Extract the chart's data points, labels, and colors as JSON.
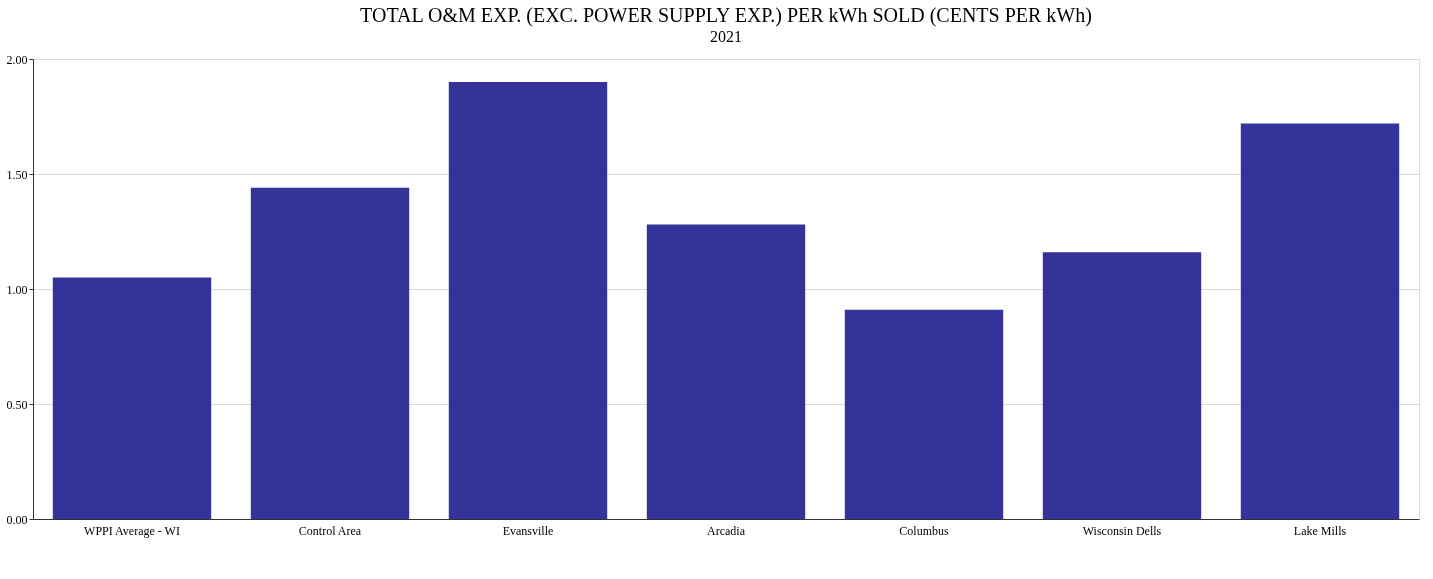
{
  "chart_data": {
    "type": "bar",
    "title": "TOTAL O&M EXP. (EXC. POWER SUPPLY EXP.) PER kWh SOLD (CENTS PER kWh)",
    "subtitle": "2021",
    "categories": [
      "WPPI Average - WI",
      "Control Area",
      "Evansville",
      "Arcadia",
      "Columbus",
      "Wisconsin Dells",
      "Lake Mills"
    ],
    "values": [
      1.05,
      1.44,
      1.9,
      1.28,
      0.91,
      1.16,
      1.72
    ],
    "color": "#333399",
    "ylim": [
      0,
      2
    ],
    "yticks": [
      {
        "value": 0,
        "label": "0.00"
      },
      {
        "value": 0.5,
        "label": "0.50"
      },
      {
        "value": 1,
        "label": "1.00"
      },
      {
        "value": 1.5,
        "label": "1.50"
      },
      {
        "value": 2,
        "label": "2.00"
      }
    ],
    "grid": "y"
  }
}
